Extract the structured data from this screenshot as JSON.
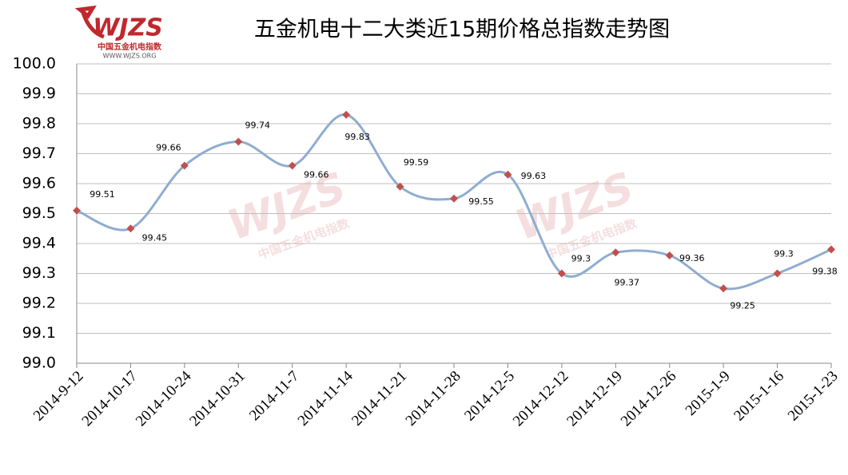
{
  "chart_data": {
    "type": "line",
    "title": "五金机电十二大类近15期价格总指数走势图",
    "logo": {
      "mark": "WJZS",
      "name": "中国五金机电指数",
      "url": "WWW.WJZS.ORG"
    },
    "categories": [
      "2014-9-12",
      "2014-10-17",
      "2014-10-24",
      "2014-10-31",
      "2014-11-7",
      "2014-11-14",
      "2014-11-21",
      "2014-11-28",
      "2014-12-5",
      "2014-12-12",
      "2014-12-19",
      "2014-12-26",
      "2015-1-9",
      "2015-1-16",
      "2015-1-23"
    ],
    "series": [
      {
        "color": "#8fadd0",
        "marker_color": "#c0504d",
        "values": [
          99.51,
          99.45,
          99.66,
          99.74,
          99.66,
          99.83,
          99.59,
          99.55,
          99.63,
          99.3,
          99.37,
          99.36,
          99.25,
          99.3,
          99.38
        ]
      }
    ],
    "ylim": [
      99.0,
      100.0
    ],
    "yticks": [
      {
        "value": 99.0,
        "label": "99.0"
      },
      99.1,
      99.2,
      99.3,
      99.4,
      99.5,
      99.6,
      99.7,
      99.8,
      99.9,
      {
        "value": 100.0,
        "label": "100.0"
      }
    ],
    "grid": true
  }
}
